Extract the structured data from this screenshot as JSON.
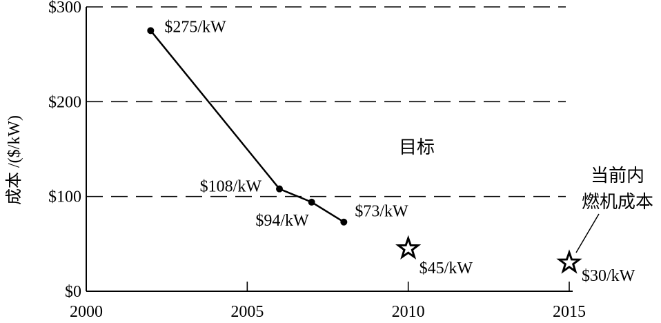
{
  "chart_data": {
    "type": "line",
    "ylabel": "成本 /($/kW)",
    "xlim": [
      2000,
      2015
    ],
    "ylim": [
      0,
      300
    ],
    "x_ticks": [
      2000,
      2005,
      2010,
      2015
    ],
    "y_ticks": [
      {
        "value": 0,
        "label": "$0"
      },
      {
        "value": 100,
        "label": "$100"
      },
      {
        "value": 200,
        "label": "$200"
      },
      {
        "value": 300,
        "label": "$300"
      }
    ],
    "series": [
      {
        "points": [
          {
            "x": 2002,
            "y": 275,
            "label": "$275/kW"
          },
          {
            "x": 2006,
            "y": 108,
            "label": "$108/kW"
          },
          {
            "x": 2007,
            "y": 94,
            "label": "$94/kW"
          },
          {
            "x": 2008,
            "y": 73,
            "label": "$73/kW"
          }
        ]
      }
    ],
    "targets": [
      {
        "x": 2010,
        "y": 45,
        "label": "$45/kW"
      },
      {
        "x": 2015,
        "y": 30,
        "label": "$30/kW"
      }
    ],
    "gridlines_dashed": [
      100,
      200,
      300
    ],
    "annotations": {
      "target": "目标",
      "ice_cost_line1": "当前内",
      "ice_cost_line2": "燃机成本"
    },
    "line_color": "#000000"
  }
}
